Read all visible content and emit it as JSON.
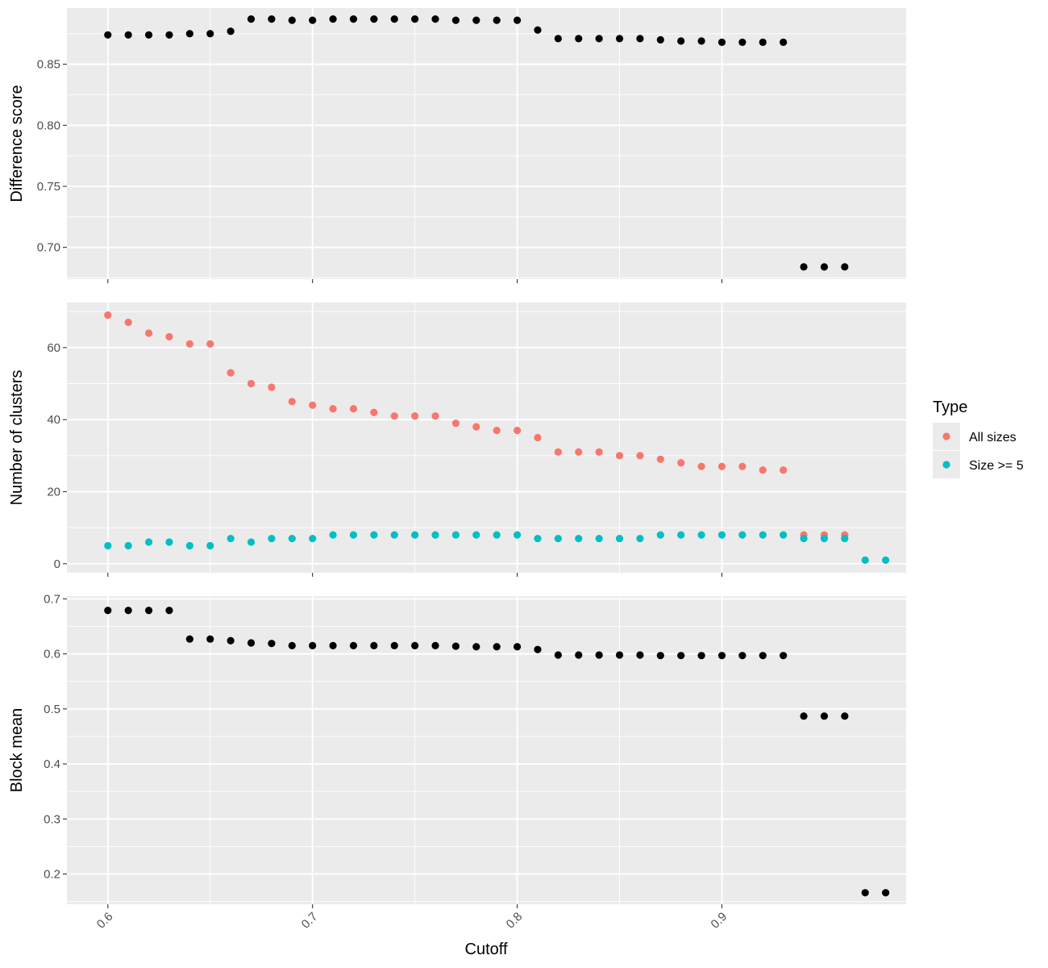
{
  "chart_data": {
    "type": "scatter",
    "layout": "faceted-vertical",
    "xlabel": "Cutoff",
    "xlim": [
      0.58,
      0.99
    ],
    "xticks": [
      0.6,
      0.7,
      0.8,
      0.9
    ],
    "xtick_labels": [
      "0.6",
      "0.7",
      "0.8",
      "0.9"
    ],
    "grid": true,
    "legend": {
      "title": "Type",
      "placement": "right",
      "entries": [
        {
          "name": "All sizes",
          "color": "#F8766D"
        },
        {
          "name": "Size >= 5",
          "color": "#00BFC4"
        }
      ]
    },
    "panels": [
      {
        "ylabel": "Difference score",
        "ylim": [
          0.674,
          0.896
        ],
        "yticks": [
          0.7,
          0.75,
          0.8,
          0.85
        ],
        "ytick_labels": [
          "0.70",
          "0.75",
          "0.80",
          "0.85"
        ],
        "series": [
          {
            "color": "#000000",
            "x": [
              0.6,
              0.61,
              0.62,
              0.63,
              0.64,
              0.65,
              0.66,
              0.67,
              0.68,
              0.69,
              0.7,
              0.71,
              0.72,
              0.73,
              0.74,
              0.75,
              0.76,
              0.77,
              0.78,
              0.79,
              0.8,
              0.81,
              0.82,
              0.83,
              0.84,
              0.85,
              0.86,
              0.87,
              0.88,
              0.89,
              0.9,
              0.91,
              0.92,
              0.93,
              0.94,
              0.95,
              0.96
            ],
            "y": [
              0.874,
              0.874,
              0.874,
              0.874,
              0.875,
              0.875,
              0.877,
              0.887,
              0.887,
              0.886,
              0.886,
              0.887,
              0.887,
              0.887,
              0.887,
              0.887,
              0.887,
              0.886,
              0.886,
              0.886,
              0.886,
              0.878,
              0.871,
              0.871,
              0.871,
              0.871,
              0.871,
              0.87,
              0.869,
              0.869,
              0.868,
              0.868,
              0.868,
              0.868,
              0.684,
              0.684,
              0.684
            ]
          }
        ]
      },
      {
        "ylabel": "Number of clusters",
        "ylim": [
          -2.5,
          72.5
        ],
        "yticks": [
          0,
          20,
          40,
          60
        ],
        "ytick_labels": [
          "0",
          "20",
          "40",
          "60"
        ],
        "series": [
          {
            "name": "All sizes",
            "color": "#F8766D",
            "x": [
              0.6,
              0.61,
              0.62,
              0.63,
              0.64,
              0.65,
              0.66,
              0.67,
              0.68,
              0.69,
              0.7,
              0.71,
              0.72,
              0.73,
              0.74,
              0.75,
              0.76,
              0.77,
              0.78,
              0.79,
              0.8,
              0.81,
              0.82,
              0.83,
              0.84,
              0.85,
              0.86,
              0.87,
              0.88,
              0.89,
              0.9,
              0.91,
              0.92,
              0.93,
              0.94,
              0.95,
              0.96
            ],
            "y": [
              69,
              67,
              64,
              63,
              61,
              61,
              53,
              50,
              49,
              45,
              44,
              43,
              43,
              42,
              41,
              41,
              41,
              39,
              38,
              37,
              37,
              35,
              31,
              31,
              31,
              30,
              30,
              29,
              28,
              27,
              27,
              27,
              26,
              26,
              8,
              8,
              8
            ]
          },
          {
            "name": "Size >= 5",
            "color": "#00BFC4",
            "x": [
              0.6,
              0.61,
              0.62,
              0.63,
              0.64,
              0.65,
              0.66,
              0.67,
              0.68,
              0.69,
              0.7,
              0.71,
              0.72,
              0.73,
              0.74,
              0.75,
              0.76,
              0.77,
              0.78,
              0.79,
              0.8,
              0.81,
              0.82,
              0.83,
              0.84,
              0.85,
              0.86,
              0.87,
              0.88,
              0.89,
              0.9,
              0.91,
              0.92,
              0.93,
              0.94,
              0.95,
              0.96,
              0.97,
              0.98
            ],
            "y": [
              5,
              5,
              6,
              6,
              5,
              5,
              7,
              6,
              7,
              7,
              7,
              8,
              8,
              8,
              8,
              8,
              8,
              8,
              8,
              8,
              8,
              7,
              7,
              7,
              7,
              7,
              7,
              8,
              8,
              8,
              8,
              8,
              8,
              8,
              7,
              7,
              7,
              1,
              1
            ]
          }
        ]
      },
      {
        "ylabel": "Block mean",
        "ylim": [
          0.145,
          0.705
        ],
        "yticks": [
          0.2,
          0.3,
          0.4,
          0.5,
          0.6,
          0.7
        ],
        "ytick_labels": [
          "0.2",
          "0.3",
          "0.4",
          "0.5",
          "0.6",
          "0.7"
        ],
        "series": [
          {
            "color": "#000000",
            "x": [
              0.6,
              0.61,
              0.62,
              0.63,
              0.64,
              0.65,
              0.66,
              0.67,
              0.68,
              0.69,
              0.7,
              0.71,
              0.72,
              0.73,
              0.74,
              0.75,
              0.76,
              0.77,
              0.78,
              0.79,
              0.8,
              0.81,
              0.82,
              0.83,
              0.84,
              0.85,
              0.86,
              0.87,
              0.88,
              0.89,
              0.9,
              0.91,
              0.92,
              0.93,
              0.94,
              0.95,
              0.96,
              0.97,
              0.98
            ],
            "y": [
              0.679,
              0.679,
              0.679,
              0.679,
              0.627,
              0.627,
              0.624,
              0.62,
              0.619,
              0.615,
              0.615,
              0.615,
              0.615,
              0.615,
              0.615,
              0.615,
              0.615,
              0.614,
              0.613,
              0.613,
              0.613,
              0.608,
              0.598,
              0.598,
              0.598,
              0.598,
              0.598,
              0.597,
              0.597,
              0.597,
              0.597,
              0.597,
              0.597,
              0.597,
              0.487,
              0.487,
              0.487,
              0.166,
              0.166
            ]
          }
        ]
      }
    ]
  }
}
